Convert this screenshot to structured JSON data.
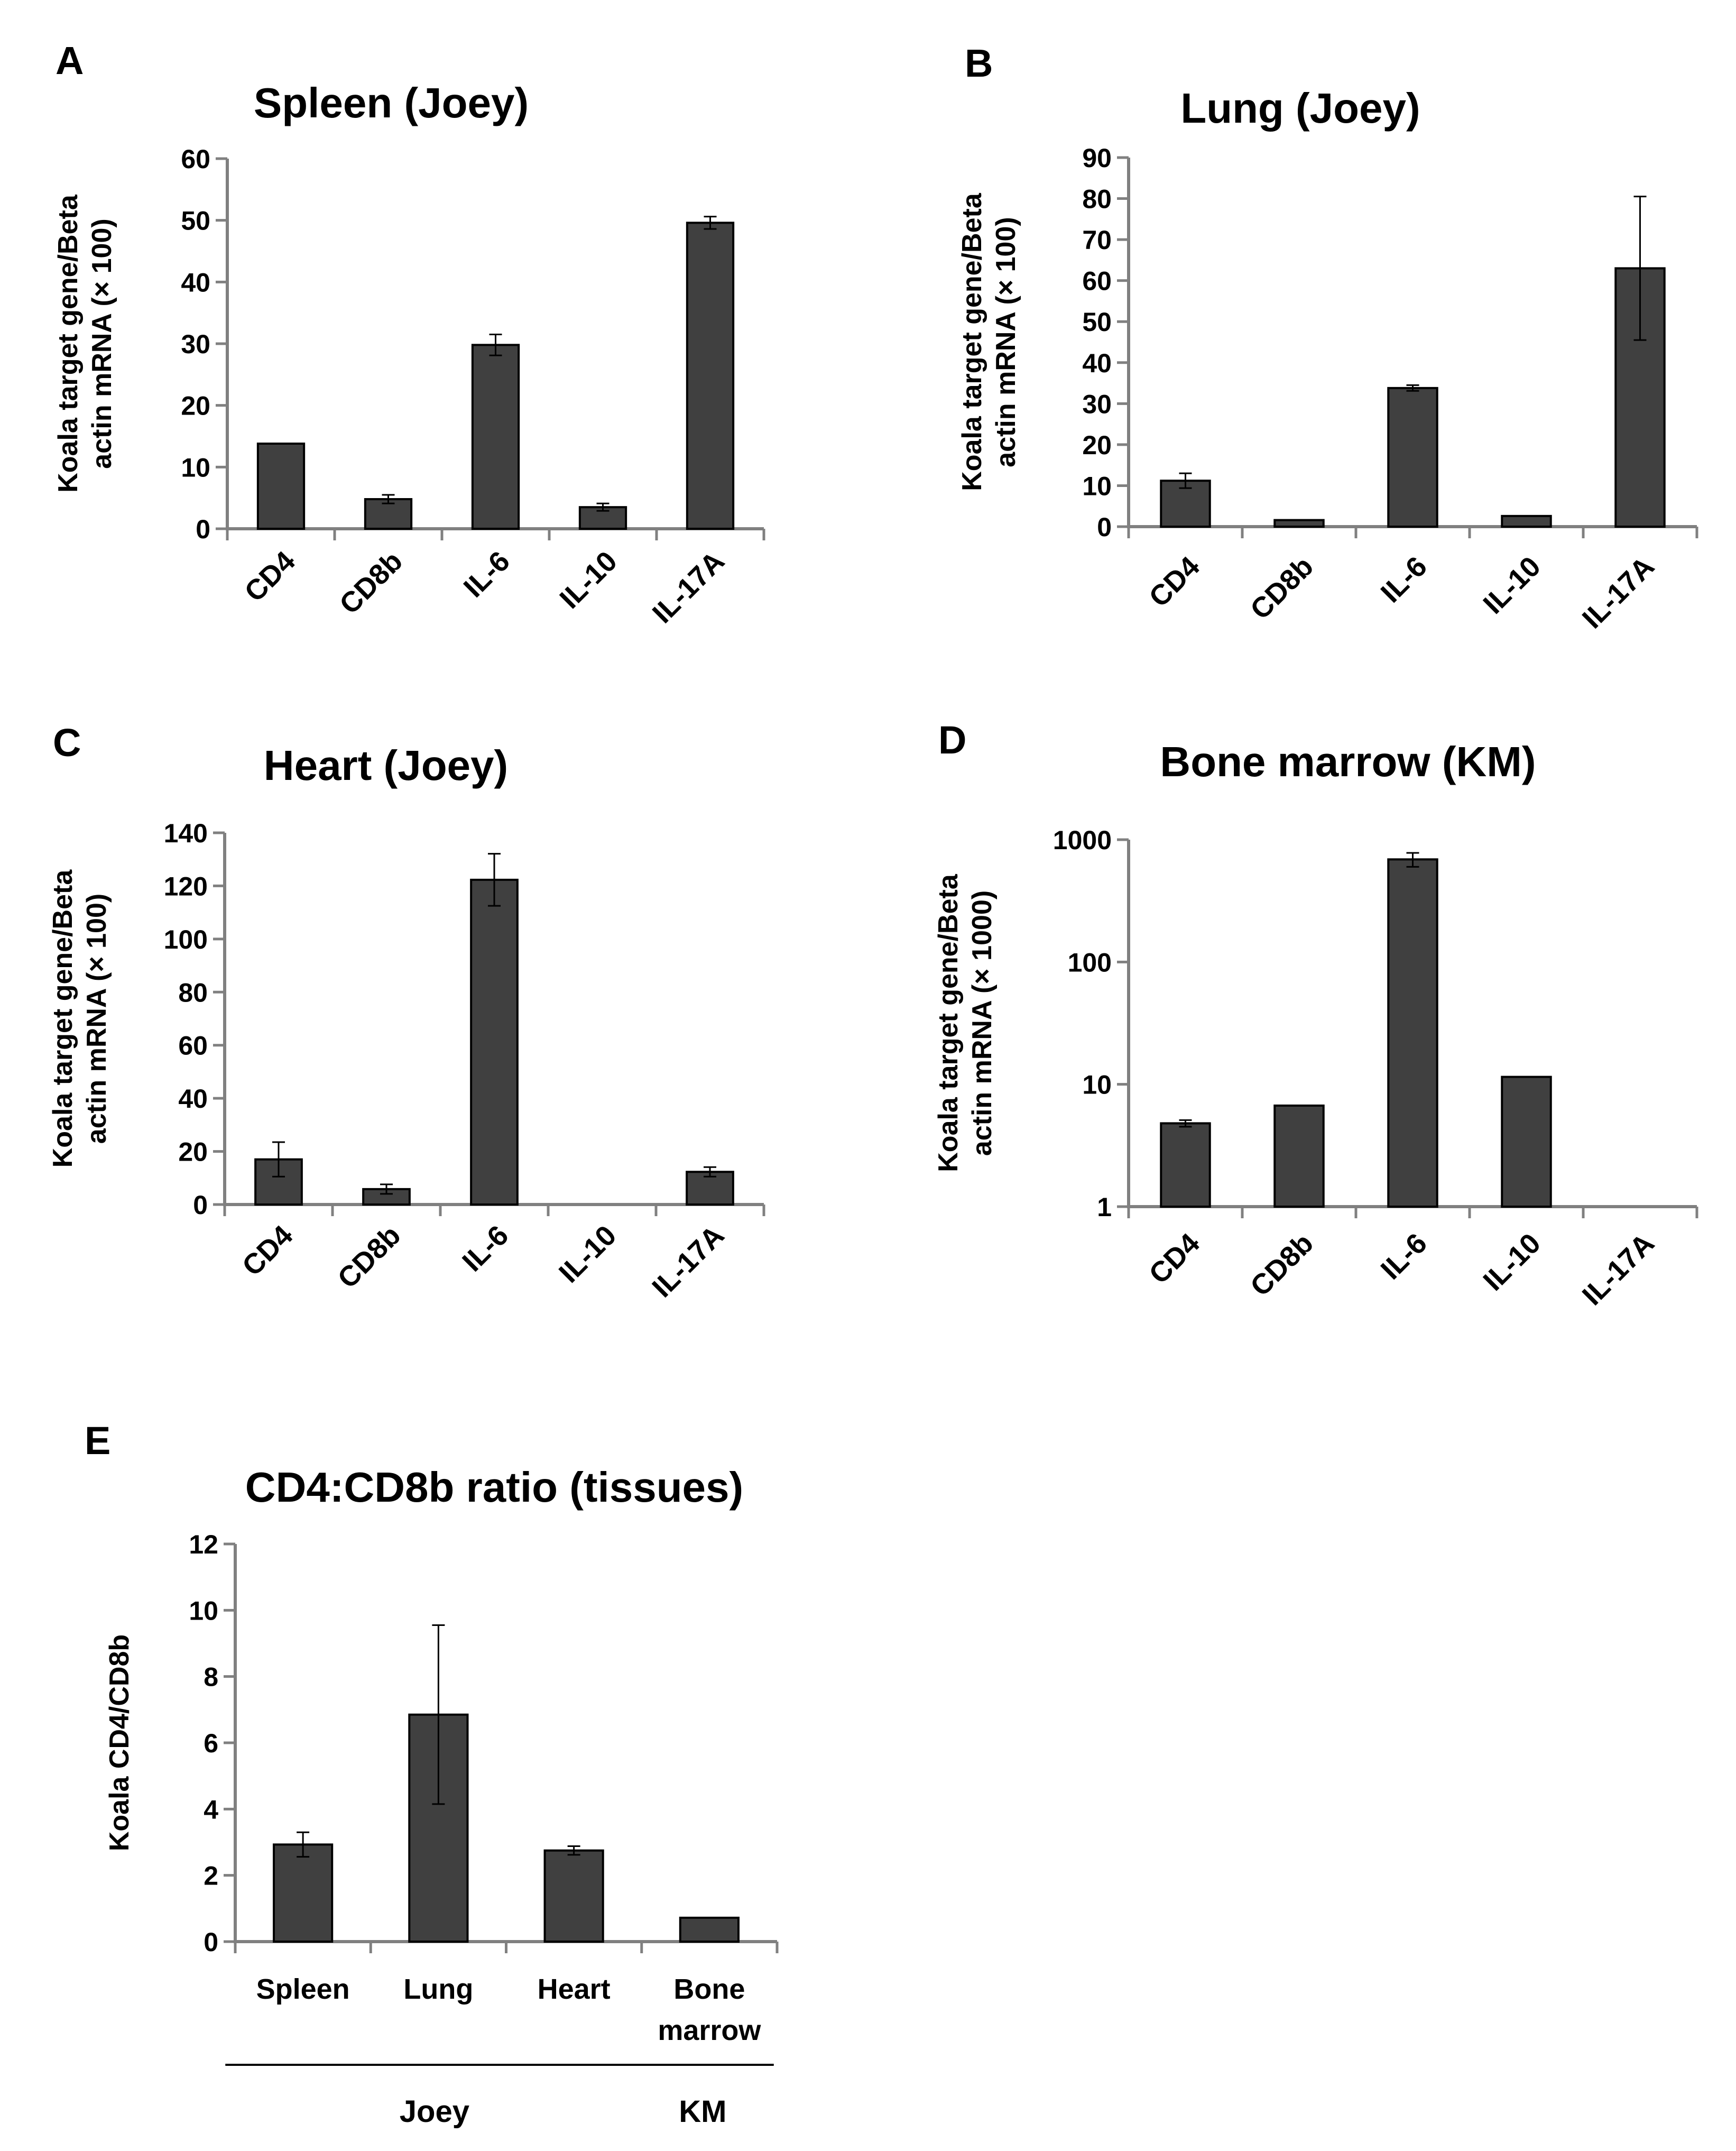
{
  "figure": {
    "description": "Five bar charts (A–E) of koala gene expression",
    "colors": {
      "bar": "#404040",
      "axis": "#808080",
      "text": "#000000"
    }
  },
  "chart_data": [
    {
      "panel": "A",
      "type": "bar",
      "title": "Spleen (Joey)",
      "ylabel_lines": [
        "Koala target gene/Beta",
        "actin mRNA (× 100)"
      ],
      "categories": [
        "CD4",
        "CD8b",
        "IL-6",
        "IL-10",
        "IL-17A"
      ],
      "values": [
        13.8,
        4.8,
        29.8,
        3.5,
        49.6
      ],
      "errors": [
        0,
        0.7,
        1.7,
        0.6,
        1.0
      ],
      "yscale": "linear",
      "ylim": [
        0,
        60
      ],
      "yticks": [
        0,
        10,
        20,
        30,
        40,
        50,
        60
      ],
      "grid": false
    },
    {
      "panel": "B",
      "type": "bar",
      "title": "Lung (Joey)",
      "ylabel_lines": [
        "Koala target gene/Beta",
        "actin mRNA (× 100)"
      ],
      "categories": [
        "CD4",
        "CD8b",
        "IL-6",
        "IL-10",
        "IL-17A"
      ],
      "values": [
        11.2,
        1.6,
        33.8,
        2.6,
        63.0
      ],
      "errors": [
        1.8,
        0,
        0.7,
        0,
        17.5
      ],
      "yscale": "linear",
      "ylim": [
        0,
        90
      ],
      "yticks": [
        0,
        10,
        20,
        30,
        40,
        50,
        60,
        70,
        80,
        90
      ],
      "grid": false
    },
    {
      "panel": "C",
      "type": "bar",
      "title": "Heart (Joey)",
      "ylabel_lines": [
        "Koala target gene/Beta",
        "actin mRNA (× 100)"
      ],
      "categories": [
        "CD4",
        "CD8b",
        "IL-6",
        "IL-10",
        "IL-17A"
      ],
      "values": [
        17.0,
        5.8,
        122.3,
        0,
        12.3
      ],
      "errors": [
        6.5,
        1.8,
        9.8,
        0,
        1.8
      ],
      "yscale": "linear",
      "ylim": [
        0,
        140
      ],
      "yticks": [
        0,
        20,
        40,
        60,
        80,
        100,
        120,
        140
      ],
      "grid": false
    },
    {
      "panel": "D",
      "type": "bar",
      "title": "Bone marrow (KM)",
      "ylabel_lines": [
        "Koala target gene/Beta",
        "actin mRNA (× 1000)"
      ],
      "categories": [
        "CD4",
        "CD8b",
        "IL-6",
        "IL-10",
        "IL-17A"
      ],
      "values": [
        4.8,
        6.7,
        690,
        11.5,
        null
      ],
      "errors": [
        0.3,
        0,
        90,
        0,
        0
      ],
      "yscale": "log",
      "ylim": [
        1,
        1000
      ],
      "yticks": [
        1,
        10,
        100,
        1000
      ],
      "grid": false
    },
    {
      "panel": "E",
      "type": "bar",
      "title": "CD4:CD8b ratio (tissues)",
      "ylabel_lines": [
        "Koala CD4/CD8b"
      ],
      "categories": [
        "Spleen",
        "Lung",
        "Heart",
        "Bone marrow"
      ],
      "category_lines": [
        [
          "Spleen"
        ],
        [
          "Lung"
        ],
        [
          "Heart"
        ],
        [
          "Bone",
          "marrow"
        ]
      ],
      "values": [
        2.93,
        6.85,
        2.75,
        0.72
      ],
      "errors": [
        0.37,
        2.7,
        0.13,
        0
      ],
      "yscale": "linear",
      "ylim": [
        0,
        12
      ],
      "yticks": [
        0,
        2,
        4,
        6,
        8,
        10,
        12
      ],
      "groups": [
        {
          "label": "Joey",
          "categories": [
            "Spleen",
            "Lung",
            "Heart"
          ]
        },
        {
          "label": "KM",
          "categories": [
            "Bone marrow"
          ]
        }
      ],
      "grid": false
    }
  ]
}
